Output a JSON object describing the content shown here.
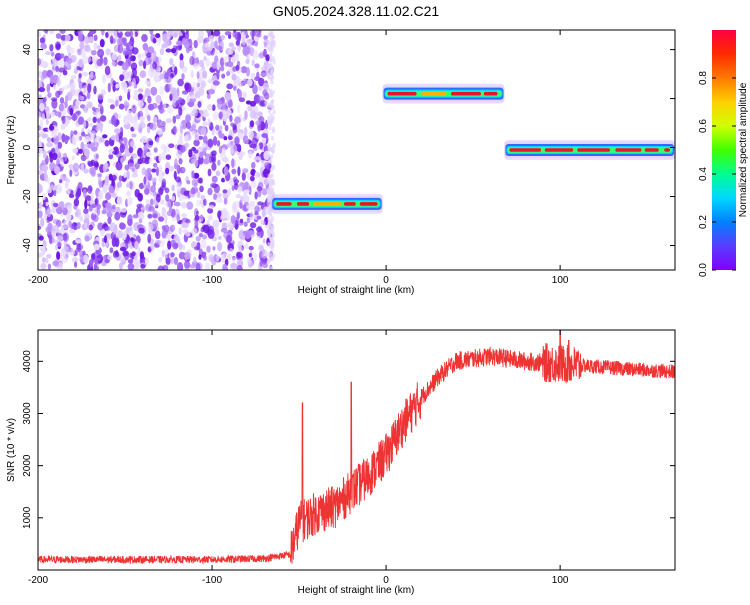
{
  "title": "GN05.2024.328.11.02.C21",
  "colors": {
    "snr_line": "#ee3333",
    "noise": "#7a2be8",
    "colorbar": [
      "#7f00ff",
      "#5a3cff",
      "#0080ff",
      "#00d8ff",
      "#00ff90",
      "#40ff00",
      "#d0ff00",
      "#ffd000",
      "#ff7a00",
      "#ff2a00",
      "#ff0040"
    ]
  },
  "chart_data": [
    {
      "type": "heatmap",
      "xlabel": "Height of straight line (km)",
      "ylabel": "Frequency (Hz)",
      "xlim": [
        -200,
        166
      ],
      "ylim": [
        -50,
        48
      ],
      "x_ticks": [
        -200,
        -100,
        0,
        100
      ],
      "x_tick_labels": [
        "-200",
        "-100",
        "0",
        "100"
      ],
      "y_ticks": [
        -40,
        -20,
        0,
        20,
        40
      ],
      "y_tick_labels": [
        "-40",
        "-20",
        "0",
        "20",
        "40"
      ],
      "noise_region": {
        "x": [
          -200,
          -66
        ],
        "y": [
          -50,
          48
        ]
      },
      "segments": [
        {
          "x_start": -66,
          "x_end": -2,
          "freq": -23,
          "amplitude": 0.9
        },
        {
          "x_start": -2,
          "x_end": 68,
          "freq": 22,
          "amplitude": 1.0
        },
        {
          "x_start": 68,
          "x_end": 166,
          "freq": -1,
          "amplitude": 0.95
        }
      ],
      "colorbar": {
        "label": "Normalized spectral amplitude",
        "range": [
          0,
          1
        ],
        "ticks": [
          0.0,
          0.2,
          0.4,
          0.6,
          0.8
        ],
        "tick_labels": [
          "0.0",
          "0.2",
          "0.4",
          "0.6",
          "0.8"
        ]
      }
    },
    {
      "type": "line",
      "xlabel": "Height of straight line (km)",
      "ylabel": "SNR (10 * v/v)",
      "xlim": [
        -200,
        166
      ],
      "ylim": [
        0,
        4600
      ],
      "x_ticks": [
        -200,
        -100,
        0,
        100
      ],
      "x_tick_labels": [
        "-200",
        "-100",
        "0",
        "100"
      ],
      "y_ticks": [
        1000,
        2000,
        3000,
        4000
      ],
      "y_tick_labels": [
        "1000",
        "2000",
        "3000",
        "4000"
      ],
      "trend": {
        "x": [
          -200,
          -150,
          -100,
          -70,
          -55,
          -50,
          -45,
          -40,
          -30,
          -20,
          -10,
          0,
          10,
          20,
          30,
          40,
          60,
          80,
          100,
          120,
          140,
          166
        ],
        "y": [
          200,
          200,
          200,
          220,
          300,
          900,
          1000,
          1100,
          1200,
          1500,
          1800,
          2200,
          2800,
          3300,
          3700,
          4000,
          4100,
          4000,
          3950,
          3900,
          3850,
          3800
        ]
      },
      "spikes": [
        {
          "x": -48,
          "y": 3200
        },
        {
          "x": -20,
          "y": 3600
        },
        {
          "x": 100,
          "y": 4600
        },
        {
          "x": 105,
          "y": 4400
        }
      ]
    }
  ]
}
